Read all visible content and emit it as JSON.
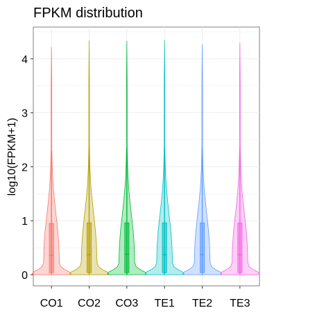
{
  "chart_data": {
    "type": "violin",
    "title": "FPKM distribution",
    "xlabel": "",
    "ylabel": "log10(FPKM+1)",
    "ylim": [
      -0.2,
      4.5
    ],
    "yticks": [
      "0",
      "1",
      "2",
      "3",
      "4"
    ],
    "grid": true,
    "legend": "none",
    "categories": [
      "CO1",
      "CO2",
      "CO3",
      "TE1",
      "TE2",
      "TE3"
    ],
    "colors": [
      "#F8766D",
      "#B79F00",
      "#00BA38",
      "#00BFC4",
      "#619CFF",
      "#F564E3"
    ],
    "series": [
      {
        "min": 0.0,
        "q1": 0.04,
        "median": 0.36,
        "q3": 0.95,
        "whisker_high": 2.3,
        "max": 4.22
      },
      {
        "min": 0.0,
        "q1": 0.04,
        "median": 0.37,
        "q3": 0.96,
        "whisker_high": 2.35,
        "max": 4.34
      },
      {
        "min": 0.0,
        "q1": 0.04,
        "median": 0.38,
        "q3": 0.96,
        "whisker_high": 2.35,
        "max": 4.33
      },
      {
        "min": 0.0,
        "q1": 0.04,
        "median": 0.37,
        "q3": 0.96,
        "whisker_high": 2.35,
        "max": 4.35
      },
      {
        "min": 0.0,
        "q1": 0.04,
        "median": 0.37,
        "q3": 0.96,
        "whisker_high": 2.35,
        "max": 4.27
      },
      {
        "min": 0.0,
        "q1": 0.04,
        "median": 0.37,
        "q3": 0.96,
        "whisker_high": 2.35,
        "max": 4.3
      }
    ]
  }
}
